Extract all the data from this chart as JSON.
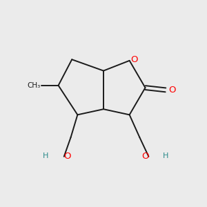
{
  "background_color": "#ebebeb",
  "bond_color": "#1a1a1a",
  "atom_colors": {
    "O": "#ff0000",
    "H": "#2a8a8a",
    "C": "#1a1a1a"
  },
  "figsize": [
    3.0,
    3.0
  ],
  "dpi": 100
}
